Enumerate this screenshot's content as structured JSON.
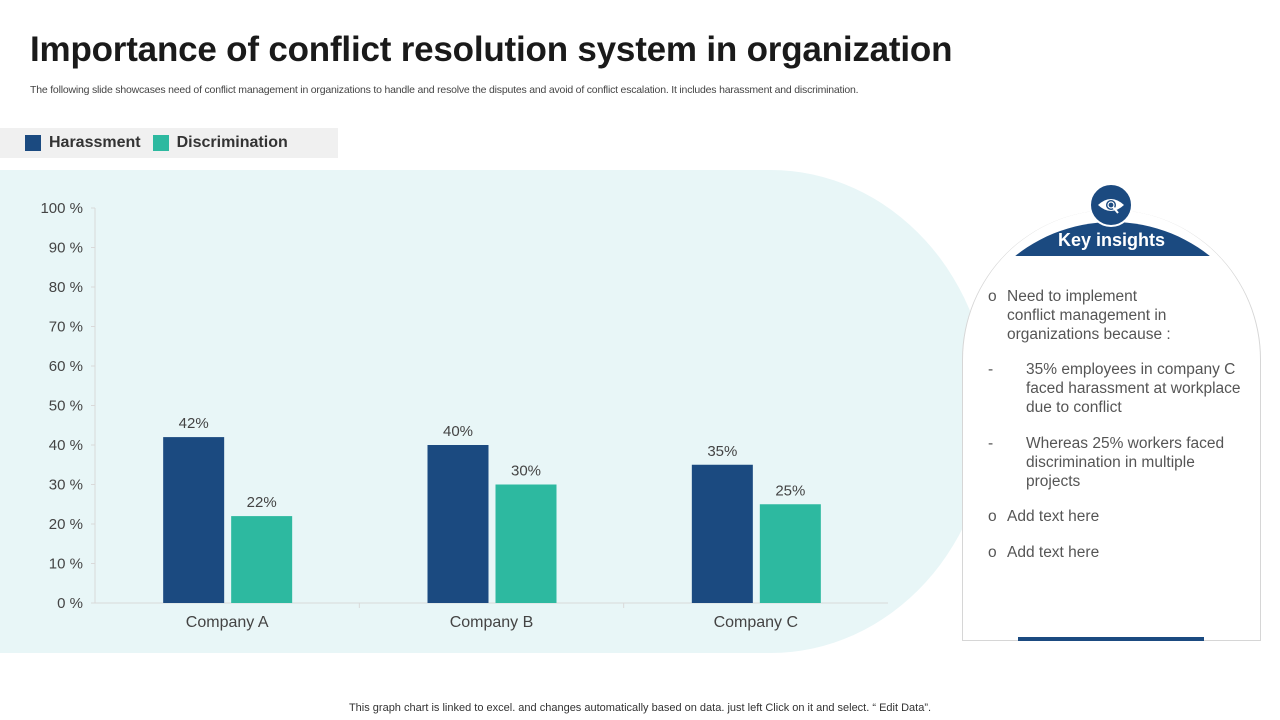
{
  "title": "Importance of conflict resolution system in organization",
  "subtitle": "The following slide showcases need of conflict management in organizations to handle and resolve the disputes and avoid of conflict escalation. It includes harassment and discrimination.",
  "colors": {
    "harassment": "#1b4a80",
    "discrimination": "#2db9a0"
  },
  "chart_data": {
    "type": "bar",
    "categories": [
      "Company A",
      "Company B",
      "Company C"
    ],
    "series": [
      {
        "name": "Harassment",
        "values": [
          42,
          40,
          35
        ],
        "labels": [
          "42%",
          "40%",
          "35%"
        ]
      },
      {
        "name": "Discrimination",
        "values": [
          22,
          30,
          25
        ],
        "labels": [
          "22%",
          "30%",
          "25%"
        ]
      }
    ],
    "ylim": [
      0,
      100
    ],
    "yticks": [
      "0 %",
      "10 %",
      "20 %",
      "30 %",
      "40 %",
      "50 %",
      "60 %",
      "70 %",
      "80 %",
      "90 %",
      "100 %"
    ],
    "legend": "top-left",
    "grid": false
  },
  "insights": {
    "title": "Key insights",
    "icon": "eye-search-icon",
    "items": [
      {
        "marker": "o",
        "text": "Need to implement conflict management in organizations because :"
      },
      {
        "marker": "-",
        "text": "35% employees in company C faced harassment at workplace due to conflict"
      },
      {
        "marker": "-",
        "text": "Whereas 25% workers faced discrimination in multiple projects"
      },
      {
        "marker": "o",
        "text": "Add text here"
      },
      {
        "marker": "o",
        "text": "Add text here"
      }
    ]
  },
  "footer": "This graph chart is linked to excel.  and changes automatically based on data. just left Click on it and select. “ Edit Data”."
}
